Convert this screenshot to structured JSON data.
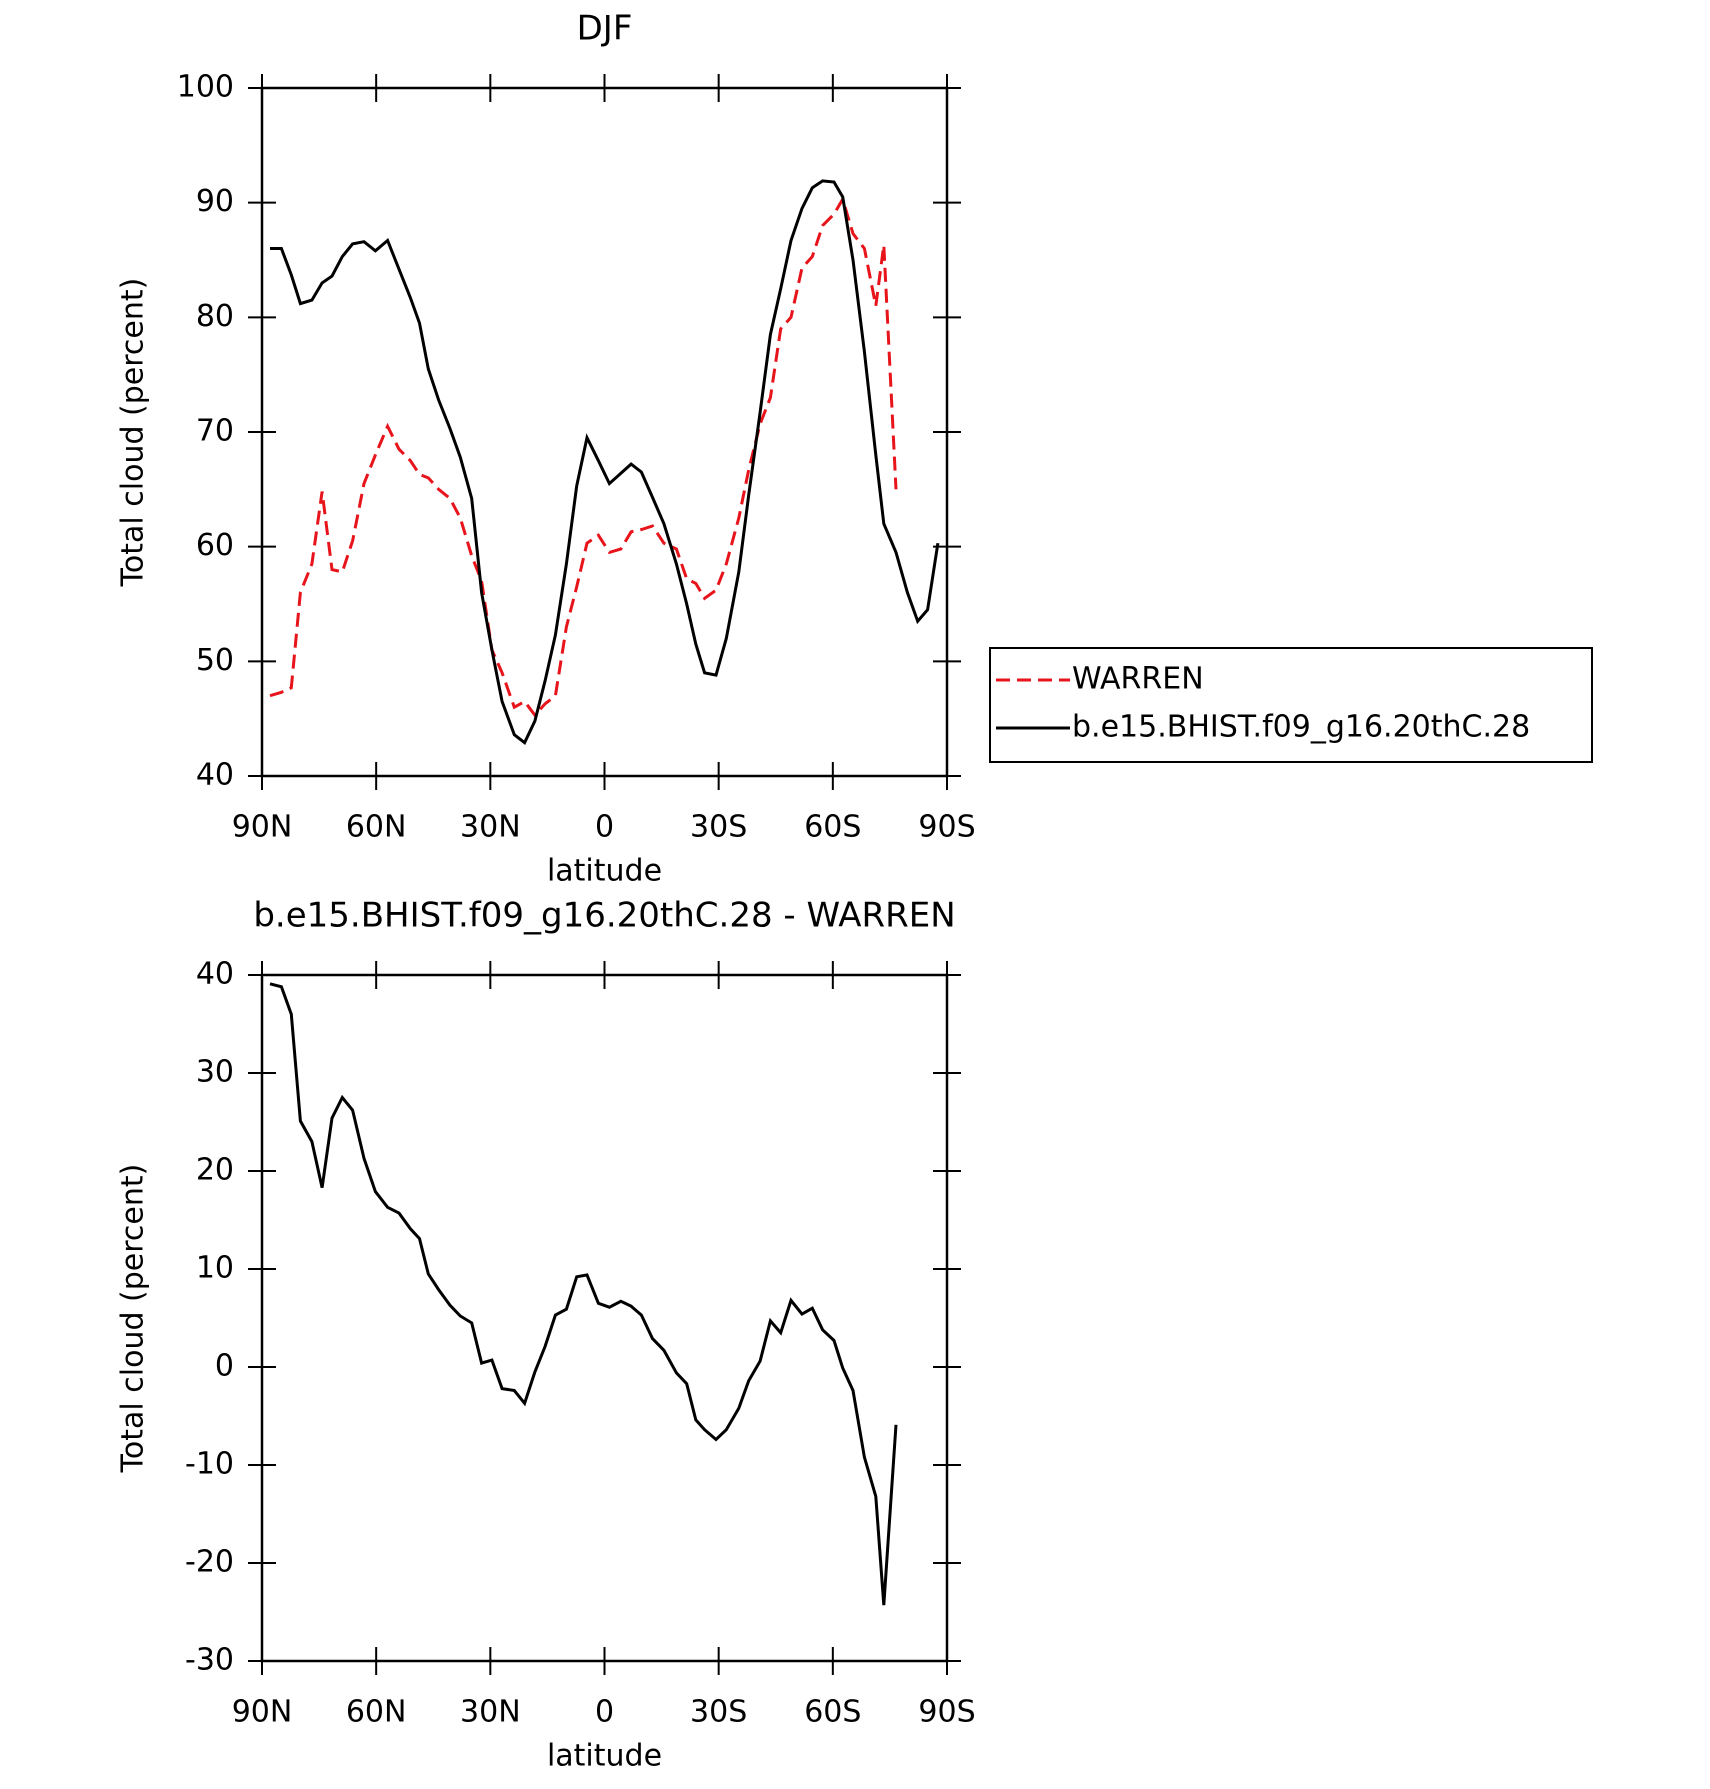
{
  "chart_data": [
    {
      "type": "line",
      "title": "DJF",
      "xlabel": "latitude",
      "ylabel": "Total cloud (percent)",
      "x": [
        87.9,
        84.9,
        82.3,
        79.9,
        76.9,
        74.2,
        71.6,
        68.9,
        66.2,
        63.2,
        60.2,
        57.0,
        54.0,
        51.0,
        48.6,
        46.3,
        43.6,
        40.6,
        37.9,
        34.9,
        32.3,
        29.6,
        26.9,
        23.7,
        21.0,
        18.3,
        15.6,
        12.9,
        10.0,
        7.3,
        4.6,
        1.6,
        -1.3,
        -4.3,
        -7.0,
        -9.7,
        -12.6,
        -15.6,
        -18.9,
        -21.6,
        -24.0,
        -26.3,
        -29.3,
        -32.0,
        -35.3,
        -37.9,
        -40.9,
        -43.6,
        -46.3,
        -49.0,
        -51.9,
        -54.6,
        -57.3,
        -60.3,
        -62.6,
        -65.3,
        -68.3,
        -71.3,
        -73.4,
        -76.6,
        -79.6,
        -82.3,
        -84.9,
        -87.6
      ],
      "series": [
        {
          "name": "WARREN",
          "color": "#e8141b",
          "style": "dashed",
          "values": [
            47,
            47.3,
            47.7,
            56,
            58.5,
            64.8,
            58,
            57.8,
            60.5,
            65.5,
            68,
            70.5,
            68.5,
            67.5,
            66.3,
            66,
            65,
            64.2,
            62.5,
            59.2,
            57,
            51,
            49,
            46,
            46.5,
            45.3,
            46.3,
            47,
            53,
            56.5,
            60.3,
            61,
            59.5,
            59.8,
            61.3,
            61.5,
            61.8,
            60.3,
            59.8,
            57.2,
            56.8,
            55.5,
            56.2,
            58.5,
            62.5,
            66.7,
            70.7,
            73,
            79,
            80,
            84.3,
            85.3,
            88,
            89,
            90.3,
            87.3,
            86,
            81,
            86.3,
            65,
            null,
            null,
            null,
            null
          ]
        },
        {
          "name": "b.e15.BHIST.f09_g16.20thC.28",
          "color": "#000000",
          "style": "solid",
          "values": [
            86,
            86,
            83.7,
            81.2,
            81.5,
            83,
            83.6,
            85.3,
            86.4,
            86.6,
            85.8,
            86.7,
            84.2,
            81.7,
            79.5,
            75.5,
            72.8,
            70.3,
            67.8,
            64.2,
            56,
            51,
            46.5,
            43.6,
            42.9,
            44.8,
            48.3,
            52.3,
            58.5,
            65.3,
            69.5,
            67.5,
            65.5,
            66.4,
            67.2,
            66.5,
            64.3,
            62,
            58.5,
            55,
            51.5,
            49,
            48.8,
            52,
            57.8,
            64.5,
            71.7,
            78.5,
            82.5,
            86.7,
            89.5,
            91.3,
            91.9,
            91.8,
            90.5,
            85,
            77,
            68,
            62,
            59.5,
            56,
            53.5,
            54.5,
            60.3
          ]
        }
      ],
      "xlim": [
        90,
        -90
      ],
      "xticks": [
        {
          "value": 90,
          "label": "90N"
        },
        {
          "value": 60,
          "label": "60N"
        },
        {
          "value": 30,
          "label": "30N"
        },
        0,
        {
          "value": -30,
          "label": "30S"
        },
        {
          "value": -60,
          "label": "60S"
        },
        {
          "value": -90,
          "label": "90S"
        }
      ],
      "ylim": [
        40,
        100
      ],
      "yticks": [
        40,
        50,
        60,
        70,
        80,
        90,
        100
      ],
      "legend": "right"
    },
    {
      "type": "line",
      "title": "b.e15.BHIST.f09_g16.20thC.28 - WARREN",
      "xlabel": "latitude",
      "ylabel": "Total cloud (percent)",
      "x": [
        87.9,
        84.9,
        82.3,
        79.9,
        76.9,
        74.2,
        71.6,
        68.9,
        66.2,
        63.2,
        60.2,
        57.0,
        54.0,
        51.0,
        48.6,
        46.3,
        43.6,
        40.6,
        37.9,
        34.9,
        32.3,
        29.6,
        26.9,
        23.7,
        21.0,
        18.3,
        15.6,
        12.9,
        10.0,
        7.3,
        4.6,
        1.6,
        -1.3,
        -4.3,
        -7.0,
        -9.7,
        -12.6,
        -15.6,
        -18.9,
        -21.6,
        -24.0,
        -26.3,
        -29.3,
        -32.0,
        -35.3,
        -37.9,
        -40.9,
        -43.6,
        -46.3,
        -49.0,
        -51.9,
        -54.6,
        -57.3,
        -60.3,
        -62.6,
        -65.3,
        -68.3,
        -71.3,
        -73.4,
        -76.6,
        -79.6,
        -82.3,
        -84.9,
        -87.6
      ],
      "series": [
        {
          "color": "#000000",
          "style": "solid",
          "values": [
            39.1,
            38.8,
            36,
            25.1,
            23,
            18.3,
            25.4,
            27.5,
            26.2,
            21.3,
            17.9,
            16.3,
            15.7,
            14.1,
            13.1,
            9.5,
            7.9,
            6.3,
            5.2,
            4.5,
            0.4,
            0.7,
            -2.2,
            -2.4,
            -3.7,
            -0.5,
            2.1,
            5.3,
            5.9,
            9.2,
            9.4,
            6.5,
            6.1,
            6.7,
            6.2,
            5.3,
            2.9,
            1.7,
            -0.6,
            -1.7,
            -5.4,
            -6.4,
            -7.4,
            -6.4,
            -4.2,
            -1.4,
            0.6,
            4.7,
            3.5,
            6.8,
            5.4,
            6,
            3.8,
            2.7,
            -0.1,
            -2.4,
            -9.2,
            -13.2,
            -24.3,
            -5.9,
            null,
            null,
            null,
            null
          ]
        }
      ],
      "xlim": [
        90,
        -90
      ],
      "xticks": [
        {
          "value": 90,
          "label": "90N"
        },
        {
          "value": 60,
          "label": "60N"
        },
        {
          "value": 30,
          "label": "30N"
        },
        0,
        {
          "value": -30,
          "label": "30S"
        },
        {
          "value": -60,
          "label": "60S"
        },
        {
          "value": -90,
          "label": "90S"
        }
      ],
      "ylim": [
        -30,
        40
      ],
      "yticks": [
        -30,
        -20,
        -10,
        0,
        10,
        20,
        30,
        40
      ]
    }
  ]
}
